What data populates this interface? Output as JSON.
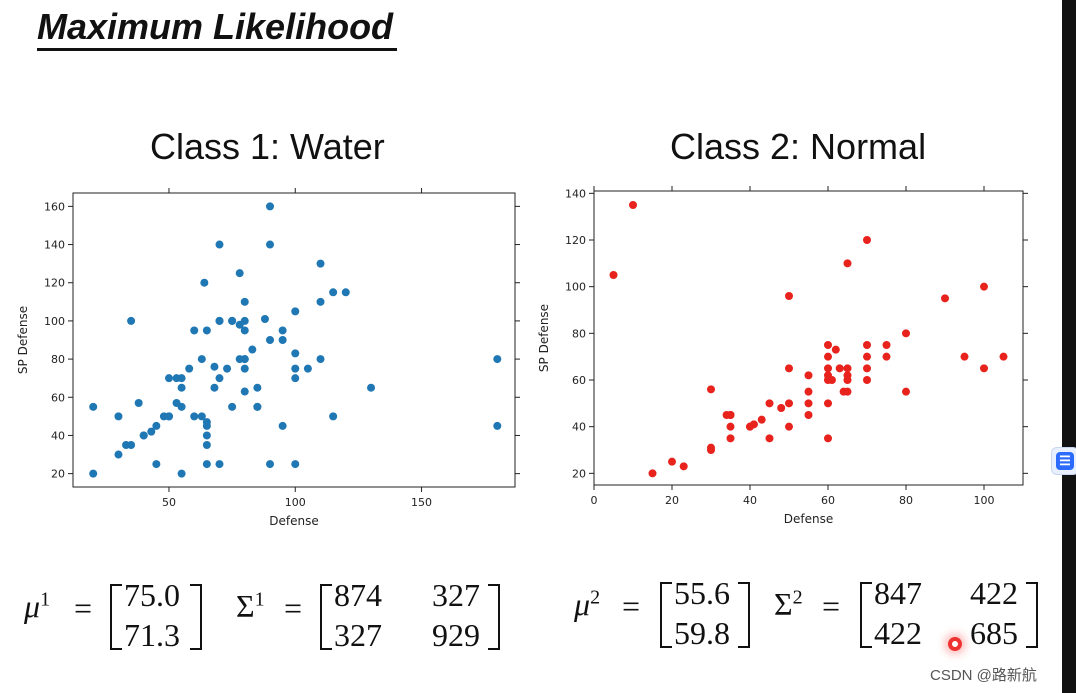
{
  "slide": {
    "title": "Maximum Likelihood"
  },
  "chart_data": [
    {
      "type": "scatter",
      "title": "Class 1: Water",
      "xlabel": "Defense",
      "ylabel": "SP Defense",
      "xlim": [
        12,
        187
      ],
      "ylim": [
        13,
        167
      ],
      "xticks": [
        50,
        100,
        150
      ],
      "yticks": [
        20,
        40,
        60,
        80,
        100,
        120,
        140,
        160
      ],
      "color": "#1f77b4",
      "x": [
        20,
        20,
        30,
        30,
        33,
        35,
        35,
        38,
        40,
        40,
        43,
        45,
        45,
        48,
        50,
        50,
        50,
        53,
        53,
        55,
        55,
        55,
        55,
        58,
        60,
        60,
        63,
        63,
        64,
        65,
        65,
        65,
        65,
        65,
        65,
        68,
        68,
        70,
        70,
        70,
        70,
        70,
        73,
        75,
        75,
        75,
        78,
        78,
        78,
        80,
        80,
        80,
        80,
        80,
        80,
        80,
        83,
        85,
        85,
        85,
        88,
        90,
        90,
        90,
        90,
        95,
        95,
        95,
        100,
        100,
        100,
        100,
        100,
        105,
        110,
        110,
        110,
        115,
        115,
        120,
        130,
        180,
        180
      ],
      "y": [
        55,
        20,
        50,
        30,
        35,
        100,
        35,
        57,
        40,
        40,
        42,
        45,
        25,
        50,
        50,
        70,
        50,
        70,
        57,
        65,
        70,
        55,
        20,
        75,
        95,
        50,
        50,
        80,
        120,
        45,
        40,
        35,
        47,
        25,
        95,
        65,
        76,
        140,
        100,
        70,
        100,
        25,
        75,
        55,
        100,
        100,
        125,
        80,
        98,
        110,
        100,
        95,
        80,
        80,
        63,
        75,
        85,
        65,
        55,
        55,
        101,
        160,
        140,
        90,
        25,
        95,
        90,
        45,
        105,
        83,
        75,
        70,
        25,
        75,
        130,
        80,
        110,
        115,
        50,
        115,
        65,
        80,
        45
      ]
    },
    {
      "type": "scatter",
      "title": "Class 2: Normal",
      "xlabel": "Defense",
      "ylabel": "SP Defense",
      "xlim": [
        0,
        110
      ],
      "ylim": [
        15,
        141
      ],
      "xticks": [
        0,
        20,
        40,
        60,
        80,
        100
      ],
      "yticks": [
        20,
        40,
        60,
        80,
        100,
        120,
        140
      ],
      "color": "#e8221c",
      "x": [
        5,
        10,
        15,
        20,
        23,
        30,
        30,
        30,
        34,
        35,
        35,
        35,
        35,
        40,
        40,
        41,
        43,
        45,
        45,
        48,
        50,
        50,
        50,
        50,
        55,
        55,
        55,
        55,
        60,
        60,
        60,
        60,
        60,
        60,
        60,
        61,
        62,
        63,
        64,
        65,
        65,
        65,
        65,
        65,
        70,
        70,
        70,
        70,
        70,
        75,
        75,
        80,
        80,
        90,
        95,
        100,
        100,
        105
      ],
      "y": [
        105,
        135,
        20,
        25,
        23,
        56,
        30,
        31,
        45,
        45,
        40,
        35,
        45,
        40,
        40,
        41,
        43,
        35,
        50,
        48,
        96,
        65,
        50,
        40,
        62,
        55,
        50,
        45,
        75,
        70,
        65,
        62,
        60,
        50,
        35,
        60,
        73,
        65,
        55,
        110,
        65,
        60,
        55,
        62,
        120,
        75,
        70,
        65,
        60,
        75,
        70,
        80,
        55,
        95,
        70,
        100,
        65,
        70
      ]
    }
  ],
  "equations": {
    "class1": {
      "mu_label": "μ",
      "mu_sup": "1",
      "equals": "=",
      "mu": [
        "75.0",
        "71.3"
      ],
      "sigma_label": "Σ",
      "sigma_sup": "1",
      "sigma": [
        [
          "874",
          "327"
        ],
        [
          "327",
          "929"
        ]
      ]
    },
    "class2": {
      "mu_label": "μ",
      "mu_sup": "2",
      "equals": "=",
      "mu": [
        "55.6",
        "59.8"
      ],
      "sigma_label": "Σ",
      "sigma_sup": "2",
      "sigma": [
        [
          "847",
          "422"
        ],
        [
          "422",
          "685"
        ]
      ]
    }
  },
  "watermark": "CSDN @路新航",
  "side_button_glyph": "☰"
}
